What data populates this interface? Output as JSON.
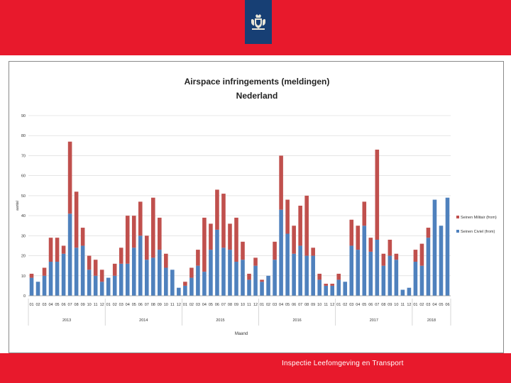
{
  "footer": {
    "text": "Inspectie Leefomgeving en Transport"
  },
  "logo": {
    "icon": "coat-of-arms-icon"
  },
  "colors": {
    "banner": "#e8192c",
    "logo_bg": "#173f74",
    "civil": "#4f81bd",
    "military": "#c0504d"
  },
  "chart_data": {
    "type": "bar",
    "stacked": true,
    "title": "Airspace infringements (meldingen)",
    "subtitle": "Nederland",
    "xlabel": "Maand",
    "ylabel": "aantal",
    "ylim": [
      0,
      90
    ],
    "yticks": [
      0,
      10,
      20,
      30,
      40,
      50,
      60,
      70,
      80,
      90
    ],
    "grid": true,
    "legend_position": "right",
    "years": [
      {
        "label": "2013",
        "months": 12
      },
      {
        "label": "2014",
        "months": 12
      },
      {
        "label": "2015",
        "months": 12
      },
      {
        "label": "2016",
        "months": 12
      },
      {
        "label": "2017",
        "months": 12
      },
      {
        "label": "2018",
        "months": 6
      }
    ],
    "categories": [
      "01",
      "02",
      "03",
      "04",
      "05",
      "06",
      "07",
      "08",
      "09",
      "10",
      "11",
      "12",
      "01",
      "02",
      "03",
      "04",
      "05",
      "06",
      "07",
      "08",
      "09",
      "10",
      "11",
      "12",
      "01",
      "02",
      "03",
      "04",
      "05",
      "06",
      "07",
      "08",
      "09",
      "10",
      "11",
      "12",
      "01",
      "02",
      "03",
      "04",
      "05",
      "06",
      "07",
      "08",
      "09",
      "10",
      "11",
      "12",
      "01",
      "02",
      "03",
      "04",
      "05",
      "06",
      "07",
      "08",
      "09",
      "10",
      "11",
      "12",
      "01",
      "02",
      "03",
      "04",
      "05",
      "06"
    ],
    "series": [
      {
        "name": "Seinen Civiel (from)",
        "color": "#4f81bd",
        "values": [
          9,
          7,
          10,
          17,
          17,
          21,
          41,
          24,
          25,
          13,
          10,
          7,
          9,
          10,
          16,
          16,
          24,
          30,
          18,
          19,
          23,
          14,
          13,
          4,
          5,
          9,
          15,
          12,
          23,
          33,
          24,
          23,
          17,
          18,
          8,
          15,
          7,
          10,
          18,
          43,
          31,
          21,
          25,
          20,
          20,
          8,
          5,
          5,
          8,
          7,
          25,
          23,
          35,
          22,
          28,
          15,
          20,
          18,
          3,
          4,
          17,
          15,
          29,
          48,
          35,
          49
        ]
      },
      {
        "name": "Seinen Militair (from)",
        "color": "#c0504d",
        "values": [
          2,
          0,
          4,
          12,
          12,
          4,
          36,
          28,
          9,
          7,
          8,
          6,
          0,
          6,
          8,
          24,
          16,
          17,
          12,
          30,
          16,
          7,
          0,
          0,
          2,
          5,
          8,
          27,
          13,
          20,
          27,
          13,
          22,
          9,
          3,
          4,
          1,
          0,
          9,
          27,
          17,
          14,
          20,
          30,
          4,
          3,
          1,
          1,
          3,
          0,
          13,
          12,
          12,
          7,
          45,
          6,
          8,
          3,
          0,
          0,
          6,
          11,
          5,
          0,
          0,
          0
        ]
      }
    ]
  }
}
